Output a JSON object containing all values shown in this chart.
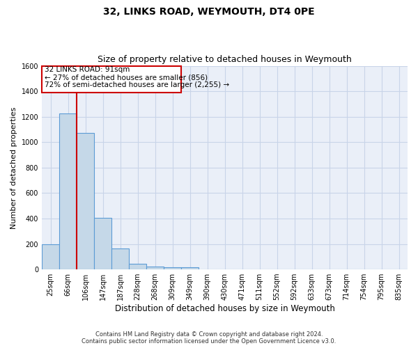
{
  "title": "32, LINKS ROAD, WEYMOUTH, DT4 0PE",
  "subtitle": "Size of property relative to detached houses in Weymouth",
  "xlabel": "Distribution of detached houses by size in Weymouth",
  "ylabel": "Number of detached properties",
  "categories": [
    "25sqm",
    "66sqm",
    "106sqm",
    "147sqm",
    "187sqm",
    "228sqm",
    "268sqm",
    "309sqm",
    "349sqm",
    "390sqm",
    "430sqm",
    "471sqm",
    "511sqm",
    "552sqm",
    "592sqm",
    "633sqm",
    "673sqm",
    "714sqm",
    "754sqm",
    "795sqm",
    "835sqm"
  ],
  "values": [
    200,
    1225,
    1075,
    405,
    165,
    45,
    20,
    15,
    15,
    0,
    0,
    0,
    0,
    0,
    0,
    0,
    0,
    0,
    0,
    0,
    0
  ],
  "bar_color": "#c5d8e8",
  "bar_edge_color": "#5b9bd5",
  "red_line_x": 1.5,
  "annotation_text_line1": "32 LINKS ROAD: 91sqm",
  "annotation_text_line2": "← 27% of detached houses are smaller (856)",
  "annotation_text_line3": "72% of semi-detached houses are larger (2,255) →",
  "annotation_box_color": "#ffffff",
  "annotation_box_edge_color": "#cc0000",
  "red_line_color": "#cc0000",
  "ylim": [
    0,
    1600
  ],
  "yticks": [
    0,
    200,
    400,
    600,
    800,
    1000,
    1200,
    1400,
    1600
  ],
  "grid_color": "#c8d4e8",
  "background_color": "#eaeff8",
  "footer_line1": "Contains HM Land Registry data © Crown copyright and database right 2024.",
  "footer_line2": "Contains public sector information licensed under the Open Government Licence v3.0."
}
